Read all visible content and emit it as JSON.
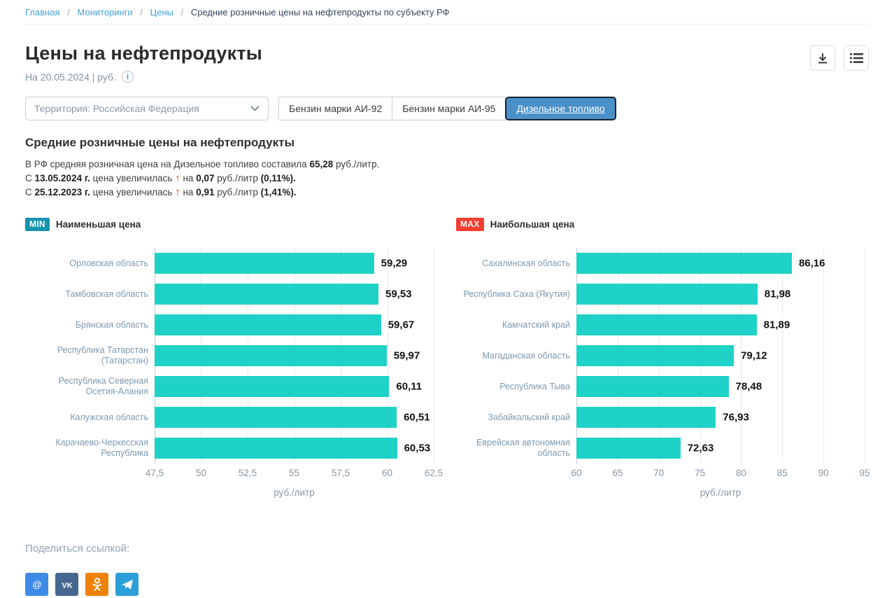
{
  "breadcrumb": {
    "links": [
      {
        "label": "Главная"
      },
      {
        "label": "Мониторинги"
      },
      {
        "label": "Цены"
      }
    ],
    "separator": "/",
    "current": "Средние розничные цены на нефтепродукты по субъекту РФ"
  },
  "header": {
    "title": "Цены на нефтепродукты",
    "date_line": "На 20.05.2024 | руб.",
    "info_glyph": "i"
  },
  "filters": {
    "territory_select": "Территория: Российская  Федерация",
    "tabs": [
      {
        "label": "Бензин марки АИ-92",
        "selected": false
      },
      {
        "label": "Бензин марки АИ-95",
        "selected": false
      },
      {
        "label": "Дизельное топливо",
        "selected": true
      }
    ]
  },
  "summary": {
    "heading": "Средние розничные цены на нефтепродукты",
    "intro": {
      "text_before": "В РФ средняя розничная цена на Дизельное топливо составила",
      "value": "65,28",
      "text_after": "руб./литр."
    },
    "arrow": "↑",
    "changes": [
      {
        "prefix": "С",
        "date": "13.05.2024 г.",
        "verb": "цена увеличилась",
        "conj": "на",
        "amount": "0,07",
        "unit": "руб./литр",
        "pct": "(0,11%)."
      },
      {
        "prefix": "С",
        "date": "25.12.2023 г.",
        "verb": "цена увеличилась",
        "conj": "на",
        "amount": "0,91",
        "unit": "руб./литр",
        "pct": "(1,41%)."
      }
    ]
  },
  "chart_data": [
    {
      "type": "bar",
      "orientation": "horizontal",
      "badge": "MIN",
      "badge_color": "#1793ad",
      "title": "Наименьшая цена",
      "categories": [
        "Орловская область",
        "Тамбовская область",
        "Брянская область",
        "Республика Татарстан (Татарстан)",
        "Республика Северная Осетия-Алания",
        "Калужская область",
        "Карачаево-Черкесская Республика"
      ],
      "values": [
        59.29,
        59.53,
        59.67,
        59.97,
        60.11,
        60.51,
        60.53
      ],
      "value_labels": [
        "59,29",
        "59,53",
        "59,67",
        "59,97",
        "60,11",
        "60,51",
        "60,53"
      ],
      "xlim": [
        47.5,
        62.5
      ],
      "xticks": [
        47.5,
        50,
        52.5,
        55,
        57.5,
        60,
        62.5
      ],
      "xtick_labels": [
        "47,5",
        "50",
        "52,5",
        "55",
        "57,5",
        "60",
        "62,5"
      ],
      "xlabel": "руб./литр",
      "bar_color": "#1ed2c8",
      "grid": true,
      "legend": "none"
    },
    {
      "type": "bar",
      "orientation": "horizontal",
      "badge": "MAX",
      "badge_color": "#f53d30",
      "title": "Наибольшая цена",
      "categories": [
        "Сахалинская область",
        "Республика Саха (Якутия)",
        "Камчатский край",
        "Магаданская область",
        "Республика Тыва",
        "Забайкальский край",
        "Еврейская автономная область"
      ],
      "values": [
        86.16,
        81.98,
        81.89,
        79.12,
        78.48,
        76.93,
        72.63
      ],
      "value_labels": [
        "86,16",
        "81,98",
        "81,89",
        "79,12",
        "78,48",
        "76,93",
        "72,63"
      ],
      "xlim": [
        60,
        95
      ],
      "xticks": [
        60,
        65,
        70,
        75,
        80,
        85,
        90,
        95
      ],
      "xtick_labels": [
        "60",
        "65",
        "70",
        "75",
        "80",
        "85",
        "90",
        "95"
      ],
      "xlabel": "руб./литр",
      "bar_color": "#1ed2c8",
      "grid": true,
      "legend": "none"
    }
  ],
  "share": {
    "label": "Поделиться ссылкой:",
    "icons": [
      {
        "name": "mailru",
        "bg": "#3f8ce8"
      },
      {
        "name": "vk",
        "bg": "#45678f"
      },
      {
        "name": "odnoklassniki",
        "bg": "#ee8208"
      },
      {
        "name": "telegram",
        "bg": "#2ba0d8"
      }
    ]
  }
}
